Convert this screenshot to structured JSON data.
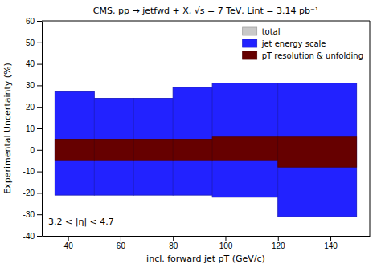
{
  "chart_data": {
    "type": "range",
    "title": "CMS, pp → jetfwd + X, √s = 7 TeV, Lint = 3.14 pb⁻¹",
    "xlabel": "incl. forward jet pT (GeV/c)",
    "ylabel": "Experimental Uncertainty (%)",
    "annotations": [
      "3.2 < |η| < 4.7"
    ],
    "bins": [
      35,
      50,
      65,
      80,
      95,
      120,
      150
    ],
    "series": [
      {
        "name": "total",
        "color": "#c8c8c8",
        "lower": [
          -21,
          -21,
          -21,
          -21,
          -22,
          -31
        ],
        "upper": [
          27,
          24,
          24,
          29,
          31,
          31
        ]
      },
      {
        "name": "jet energy scale",
        "color": "#2222ff",
        "lower": [
          -21,
          -21,
          -21,
          -21,
          -22,
          -31
        ],
        "upper": [
          27,
          24,
          24,
          29,
          31,
          31
        ]
      },
      {
        "name": "pT resolution & unfolding",
        "color": "#660000",
        "lower": [
          -5,
          -5,
          -5,
          -5,
          -5,
          -8
        ],
        "upper": [
          5,
          5,
          5,
          5,
          6,
          6
        ]
      }
    ],
    "xlim": [
      30,
      155
    ],
    "ylim": [
      -40,
      60
    ],
    "xticks": [
      40,
      60,
      80,
      100,
      120,
      140
    ],
    "yticks": [
      -40,
      -30,
      -20,
      -10,
      0,
      10,
      20,
      30,
      40,
      50,
      60
    ],
    "legend": "upper right",
    "grid": false
  }
}
